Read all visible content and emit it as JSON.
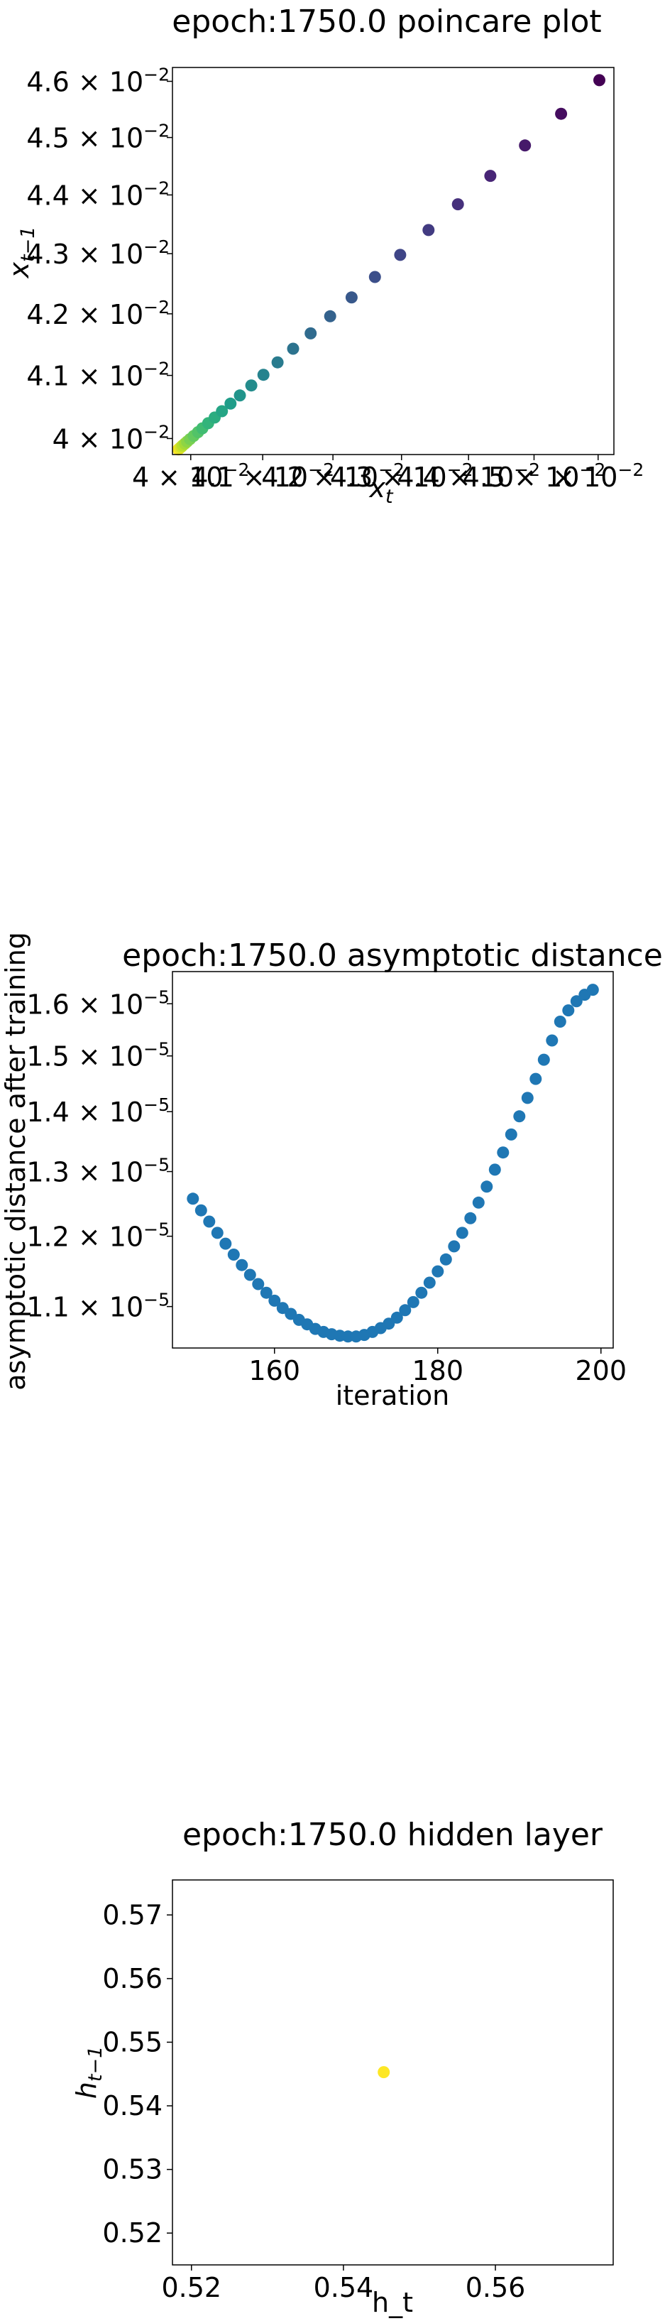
{
  "chart_data": [
    {
      "type": "scatter",
      "title": "epoch:1750.0 poincare plot",
      "xlabel": "x",
      "xlabel_sub": "t",
      "ylabel": "x",
      "ylabel_sub": "t−1",
      "xscale": "log",
      "yscale": "log",
      "xlim": [
        0.03975,
        0.04625
      ],
      "ylim": [
        0.03975,
        0.04625
      ],
      "colormap": "viridis",
      "x_ticks": [
        {
          "value": 0.04,
          "mantissa": "4",
          "times": "×",
          "base": "10",
          "exp": "−2"
        },
        {
          "value": 0.041,
          "mantissa": "4.1",
          "times": "×",
          "base": "10",
          "exp": "−2"
        },
        {
          "value": 0.042,
          "mantissa": "4.2",
          "times": "×",
          "base": "10",
          "exp": "−2"
        },
        {
          "value": 0.043,
          "mantissa": "4.3",
          "times": "×",
          "base": "10",
          "exp": "−2"
        },
        {
          "value": 0.044,
          "mantissa": "4.4",
          "times": "×",
          "base": "10",
          "exp": "−2"
        },
        {
          "value": 0.045,
          "mantissa": "4.5",
          "times": "×",
          "base": "10",
          "exp": "−2"
        },
        {
          "value": 0.046,
          "mantissa": "",
          "times": "×",
          "base": "10",
          "exp": "−2"
        }
      ],
      "y_ticks": [
        {
          "value": 0.04,
          "mantissa": "4",
          "times": "×",
          "base": "10",
          "exp": "−2"
        },
        {
          "value": 0.041,
          "mantissa": "4.1",
          "times": "×",
          "base": "10",
          "exp": "−2"
        },
        {
          "value": 0.042,
          "mantissa": "4.2",
          "times": "×",
          "base": "10",
          "exp": "−2"
        },
        {
          "value": 0.043,
          "mantissa": "4.3",
          "times": "×",
          "base": "10",
          "exp": "−2"
        },
        {
          "value": 0.044,
          "mantissa": "4.4",
          "times": "×",
          "base": "10",
          "exp": "−2"
        },
        {
          "value": 0.045,
          "mantissa": "4.5",
          "times": "×",
          "base": "10",
          "exp": "−2"
        },
        {
          "value": 0.046,
          "mantissa": "4.6",
          "times": "×",
          "base": "10",
          "exp": "−2"
        }
      ],
      "points": {
        "x": [
          0.04602,
          0.04542,
          0.04486,
          0.04433,
          0.04384,
          0.0434,
          0.04298,
          0.04261,
          0.04227,
          0.04196,
          0.04168,
          0.04143,
          0.04121,
          0.04101,
          0.04084,
          0.04068,
          0.04055,
          0.04043,
          0.04033,
          0.04024,
          0.04016,
          0.0401,
          0.04004,
          0.03999,
          0.03995,
          0.03992,
          0.03989,
          0.03987,
          0.03985,
          0.03983
        ],
        "y": [
          0.04602,
          0.04542,
          0.04486,
          0.04433,
          0.04384,
          0.0434,
          0.04298,
          0.04261,
          0.04227,
          0.04196,
          0.04168,
          0.04143,
          0.04121,
          0.04101,
          0.04084,
          0.04068,
          0.04055,
          0.04043,
          0.04033,
          0.04024,
          0.04016,
          0.0401,
          0.04004,
          0.03999,
          0.03995,
          0.03992,
          0.03989,
          0.03987,
          0.03985,
          0.03983
        ]
      }
    },
    {
      "type": "scatter",
      "title": "epoch:1750.0 asymptotic distance",
      "xlabel": "iteration",
      "ylabel": "asymptotic distance after training",
      "xscale": "linear",
      "yscale": "log",
      "xlim": [
        147.5,
        201.5
      ],
      "ylim": [
        1.045e-05,
        1.665e-05
      ],
      "color": "#1f77b4",
      "x_ticks": [
        {
          "value": 160,
          "label": "160"
        },
        {
          "value": 180,
          "label": "180"
        },
        {
          "value": 200,
          "label": "200"
        }
      ],
      "y_ticks": [
        {
          "value": 1.1e-05,
          "mantissa": "1.1",
          "times": "×",
          "base": "10",
          "exp": "−5"
        },
        {
          "value": 1.2e-05,
          "mantissa": "1.2",
          "times": "×",
          "base": "10",
          "exp": "−5"
        },
        {
          "value": 1.3e-05,
          "mantissa": "1.3",
          "times": "×",
          "base": "10",
          "exp": "−5"
        },
        {
          "value": 1.4e-05,
          "mantissa": "1.4",
          "times": "×",
          "base": "10",
          "exp": "−5"
        },
        {
          "value": 1.5e-05,
          "mantissa": "1.5",
          "times": "×",
          "base": "10",
          "exp": "−5"
        },
        {
          "value": 1.6e-05,
          "mantissa": "1.6",
          "times": "×",
          "base": "10",
          "exp": "−5"
        }
      ],
      "points": {
        "x": [
          150,
          151,
          152,
          153,
          154,
          155,
          156,
          157,
          158,
          159,
          160,
          161,
          162,
          163,
          164,
          165,
          166,
          167,
          168,
          169,
          170,
          171,
          172,
          173,
          174,
          175,
          176,
          177,
          178,
          179,
          180,
          181,
          182,
          183,
          184,
          185,
          186,
          187,
          188,
          189,
          190,
          191,
          192,
          193,
          194,
          195,
          196,
          197,
          198,
          199
        ],
        "y": [
          1.257e-05,
          1.239e-05,
          1.222e-05,
          1.205e-05,
          1.189e-05,
          1.173e-05,
          1.158e-05,
          1.144e-05,
          1.131e-05,
          1.119e-05,
          1.108e-05,
          1.098e-05,
          1.09e-05,
          1.082e-05,
          1.076e-05,
          1.07e-05,
          1.066e-05,
          1.063e-05,
          1.061e-05,
          1.06e-05,
          1.06e-05,
          1.062e-05,
          1.066e-05,
          1.071e-05,
          1.077e-05,
          1.085e-05,
          1.095e-05,
          1.106e-05,
          1.119e-05,
          1.133e-05,
          1.149e-05,
          1.166e-05,
          1.185e-05,
          1.205e-05,
          1.227e-05,
          1.251e-05,
          1.276e-05,
          1.303e-05,
          1.331e-05,
          1.361e-05,
          1.392e-05,
          1.424e-05,
          1.458e-05,
          1.493e-05,
          1.529e-05,
          1.565e-05,
          1.587e-05,
          1.605e-05,
          1.618e-05,
          1.628e-05
        ]
      }
    },
    {
      "type": "scatter",
      "title": "epoch:1750.0 hidden layer",
      "xlabel": "h_t",
      "ylabel": "h",
      "ylabel_sub": "t−1",
      "xscale": "linear",
      "yscale": "linear",
      "xlim": [
        0.5175,
        0.5755
      ],
      "ylim": [
        0.515,
        0.5755
      ],
      "color": "#fde725",
      "x_ticks": [
        {
          "value": 0.52,
          "label": "0.52"
        },
        {
          "value": 0.54,
          "label": "0.54"
        },
        {
          "value": 0.56,
          "label": "0.56"
        }
      ],
      "y_ticks": [
        {
          "value": 0.52,
          "label": "0.52"
        },
        {
          "value": 0.53,
          "label": "0.53"
        },
        {
          "value": 0.54,
          "label": "0.54"
        },
        {
          "value": 0.55,
          "label": "0.55"
        },
        {
          "value": 0.56,
          "label": "0.56"
        },
        {
          "value": 0.57,
          "label": "0.57"
        }
      ],
      "points": {
        "x": [
          0.5453
        ],
        "y": [
          0.5453
        ]
      }
    }
  ]
}
